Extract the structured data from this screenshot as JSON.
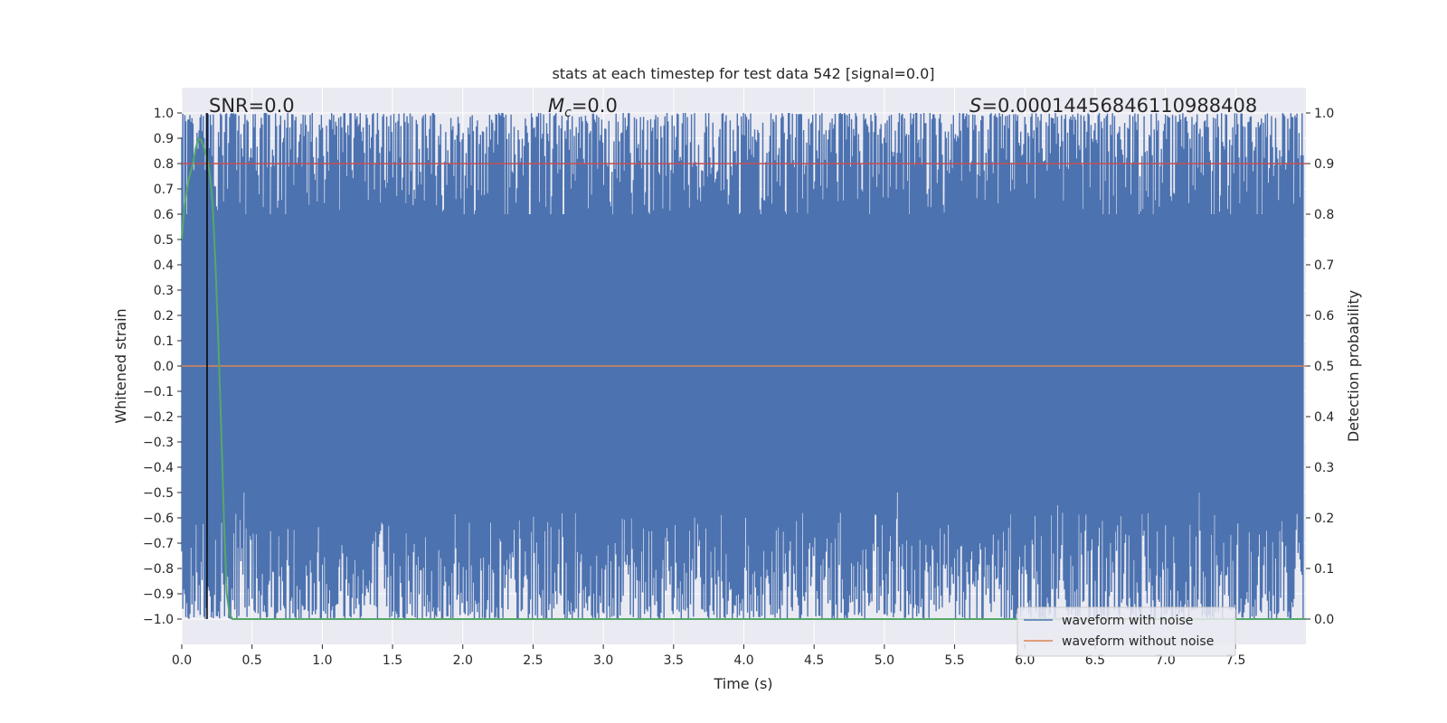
{
  "chart_data": {
    "type": "line",
    "title": "stats at each timestep for test data 542 [signal=0.0]",
    "xlabel": "Time (s)",
    "ylabel": "Whitened strain",
    "ylabel_right": "Detection probability",
    "xlim": [
      0.0,
      8.0
    ],
    "ylim": [
      -1.1,
      1.1
    ],
    "ylim_right": [
      -0.05,
      1.05
    ],
    "x_ticks": [
      0.0,
      0.5,
      1.0,
      1.5,
      2.0,
      2.5,
      3.0,
      3.5,
      4.0,
      4.5,
      5.0,
      5.5,
      6.0,
      6.5,
      7.0,
      7.5
    ],
    "x_tick_labels": [
      "0.0",
      "0.5",
      "1.0",
      "1.5",
      "2.0",
      "2.5",
      "3.0",
      "3.5",
      "4.0",
      "4.5",
      "5.0",
      "5.5",
      "6.0",
      "6.5",
      "7.0",
      "7.5"
    ],
    "y_ticks": [
      1.0,
      0.9,
      0.8,
      0.7,
      0.6,
      0.5,
      0.4,
      0.3,
      0.2,
      0.1,
      0.0,
      -0.1,
      -0.2,
      -0.3,
      -0.4,
      -0.5,
      -0.6,
      -0.7,
      -0.8,
      -0.9,
      -1.0
    ],
    "y_tick_labels": [
      "1.0",
      "0.9",
      "0.8",
      "0.7",
      "0.6",
      "0.5",
      "0.4",
      "0.3",
      "0.2",
      "0.1",
      "0.0",
      "−0.1",
      "−0.2",
      "−0.3",
      "−0.4",
      "−0.5",
      "−0.6",
      "−0.7",
      "−0.8",
      "−0.9",
      "−1.0"
    ],
    "y_right_ticks": [
      1.0,
      0.9,
      0.8,
      0.7,
      0.6,
      0.5,
      0.4,
      0.3,
      0.2,
      0.1,
      0.0
    ],
    "y_right_tick_labels": [
      "1.0",
      "0.9",
      "0.8",
      "0.7",
      "0.6",
      "0.5",
      "0.4",
      "0.3",
      "0.2",
      "0.1",
      "0.0"
    ],
    "grid": true,
    "annotations": {
      "snr_text": "SNR=0.0",
      "mc_symbol": "M",
      "mc_subscript": "c",
      "mc_value": "=0.0",
      "s_symbol": "S",
      "s_value": "=0.00014456846110988408"
    },
    "legend": {
      "placement": "lower-right",
      "entries": [
        "waveform with noise",
        "waveform without noise"
      ]
    },
    "series": [
      {
        "name": "waveform with noise",
        "color": "#4c72b0",
        "description_values": {
          "upper_envelope_approx": 1.0,
          "lower_envelope_approx": -1.0
        },
        "notable_dips": [
          {
            "x": 2.71,
            "y": 0.4
          },
          {
            "x": 2.72,
            "y": 0.13
          },
          {
            "x": 0.3,
            "y": 0.65
          },
          {
            "x": 7.33,
            "y": 0.32
          },
          {
            "x": 4.9,
            "y": 0.58
          }
        ],
        "notable_spikes": [
          {
            "x": 5.09,
            "y": -0.39
          },
          {
            "x": 7.24,
            "y": -0.35
          },
          {
            "x": 0.44,
            "y": -0.43
          },
          {
            "x": 6.23,
            "y": -0.55
          }
        ]
      },
      {
        "name": "waveform without noise",
        "color": "#dd8452",
        "x": [
          0.0,
          8.0
        ],
        "y": [
          0.0,
          0.0
        ]
      }
    ],
    "right_axis_series": [
      {
        "color": "#55a868",
        "x": [
          0.0,
          0.02,
          0.05,
          0.08,
          0.1,
          0.12,
          0.14,
          0.16,
          0.18,
          0.2,
          0.22,
          0.24,
          0.26,
          0.28,
          0.3,
          0.32,
          0.34,
          0.36,
          1.0,
          8.0
        ],
        "y": [
          0.75,
          0.82,
          0.87,
          0.9,
          0.93,
          0.95,
          0.945,
          0.93,
          0.91,
          0.88,
          0.82,
          0.7,
          0.55,
          0.38,
          0.2,
          0.05,
          0.01,
          0.0,
          0.0,
          0.0
        ]
      }
    ],
    "threshold_line": {
      "axis": "right",
      "y": 0.9,
      "color": "#c44e52"
    },
    "vertical_marker": {
      "x": 0.18,
      "color": "#000000"
    }
  }
}
